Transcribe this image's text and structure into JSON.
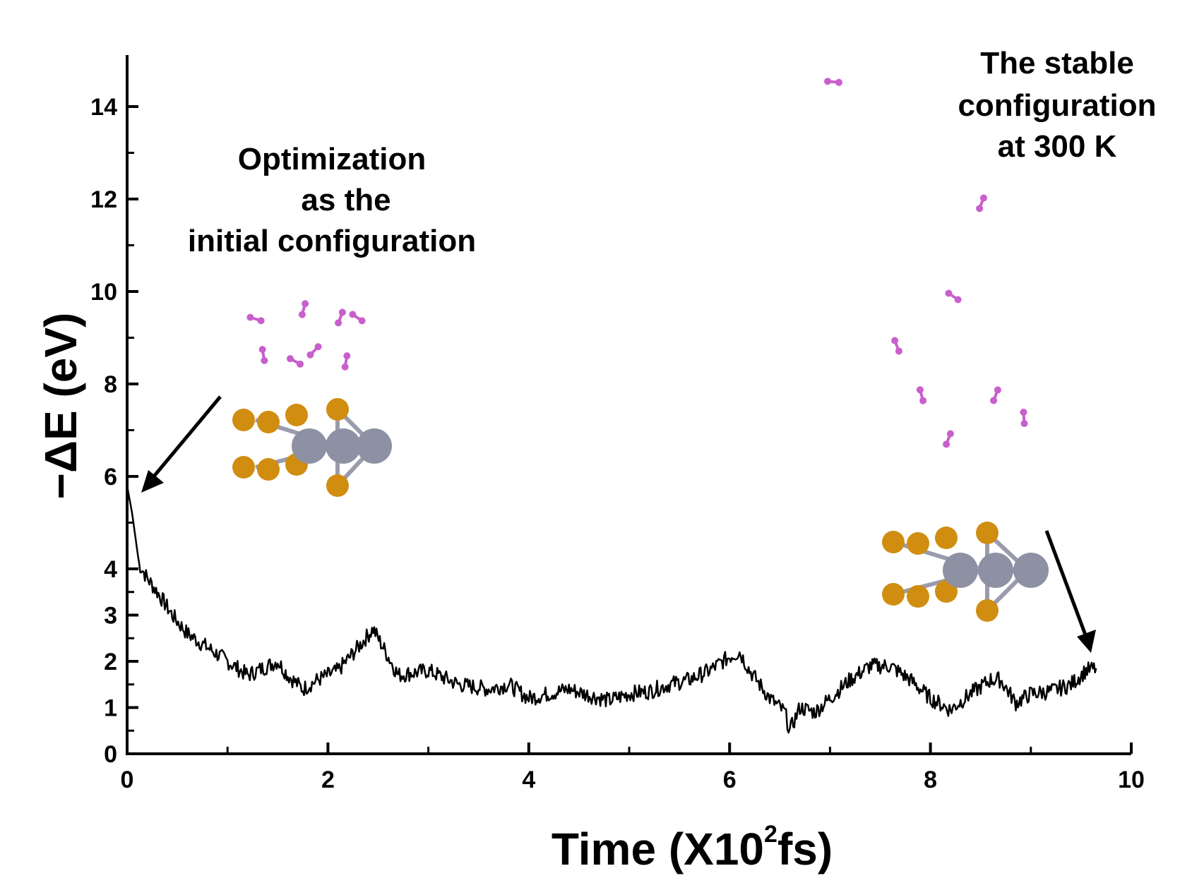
{
  "chart_data": {
    "type": "line",
    "title": "",
    "xlabel": "Time (X10",
    "xlabel_sup": "2",
    "xlabel_unit": "fs)",
    "ylabel": "−ΔE (eV)",
    "xlim": [
      0,
      10
    ],
    "ylim": [
      0,
      15
    ],
    "grid": false,
    "x_ticks": [
      "0",
      "2",
      "4",
      "6",
      "8",
      "10"
    ],
    "y_ticks": [
      "0",
      "1",
      "2",
      "3",
      "4",
      "6",
      "8",
      "10",
      "12",
      "14"
    ],
    "y_tick_values": [
      0,
      1,
      2,
      3,
      4,
      6,
      8,
      10,
      12,
      14
    ],
    "series": [
      {
        "x": [
          0,
          0.05,
          0.12,
          0.2,
          0.3,
          0.45,
          0.6,
          0.8,
          1.0,
          1.2,
          1.4,
          1.5,
          1.6,
          1.75,
          1.9,
          2.1,
          2.3,
          2.45,
          2.55,
          2.7,
          3.0,
          3.3,
          3.6,
          3.8,
          4.0,
          4.2,
          4.4,
          4.55,
          4.8,
          5.0,
          5.2,
          5.4,
          5.6,
          5.8,
          6.0,
          6.1,
          6.2,
          6.4,
          6.55,
          6.6,
          6.7,
          6.85,
          7.0,
          7.2,
          7.4,
          7.6,
          7.8,
          8.0,
          8.2,
          8.4,
          8.6,
          8.7,
          8.85,
          9.0,
          9.2,
          9.4,
          9.55,
          9.65
        ],
        "y": [
          5.8,
          5.2,
          4.1,
          3.8,
          3.5,
          3.0,
          2.6,
          2.3,
          2.0,
          1.7,
          1.9,
          2.0,
          1.7,
          1.4,
          1.6,
          1.8,
          2.3,
          2.7,
          2.3,
          1.7,
          1.8,
          1.5,
          1.4,
          1.5,
          1.2,
          1.3,
          1.4,
          1.3,
          1.15,
          1.3,
          1.35,
          1.5,
          1.6,
          1.8,
          2.1,
          2.2,
          1.8,
          1.2,
          0.9,
          0.5,
          1.0,
          0.9,
          1.2,
          1.6,
          1.9,
          1.9,
          1.6,
          1.2,
          0.95,
          1.3,
          1.6,
          1.6,
          1.1,
          1.3,
          1.35,
          1.5,
          1.8,
          1.85
        ]
      }
    ],
    "annotations": [
      [
        "Optimization",
        "as the",
        "initial configuration"
      ],
      [
        "The stable",
        "configuration",
        "at 300 K"
      ]
    ],
    "line_color": "#000000",
    "molecule_colors": {
      "sulfur": "#D08D10",
      "metal": "#8E90A3",
      "gas": "#C85FCC"
    }
  }
}
